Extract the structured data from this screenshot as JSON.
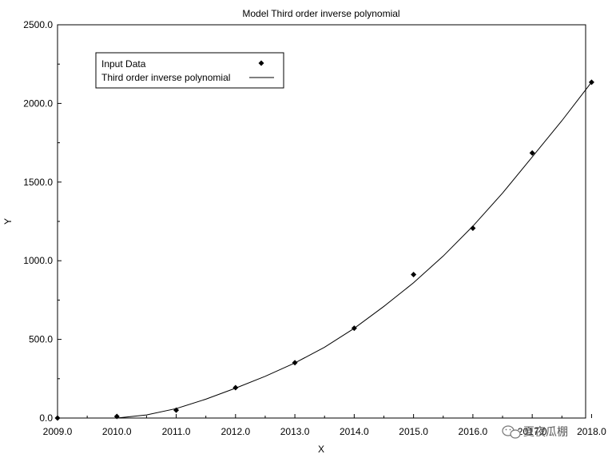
{
  "chart_data": {
    "type": "scatter",
    "title": "Model Third order inverse polynomial",
    "xlabel": "X",
    "ylabel": "Y",
    "xlim": [
      2009.0,
      2017.9
    ],
    "ylim": [
      0.0,
      2500.0
    ],
    "x_ticks": [
      2009.0,
      2010.0,
      2011.0,
      2012.0,
      2013.0,
      2014.0,
      2015.0,
      2016.0,
      2017.0,
      2018.0
    ],
    "x_tick_labels": [
      "2009.0",
      "2010.0",
      "2011.0",
      "2012.0",
      "2013.0",
      "2014.0",
      "2015.0",
      "2016.0",
      "2017.0",
      "2018.0"
    ],
    "y_ticks": [
      0.0,
      500.0,
      1000.0,
      1500.0,
      2000.0,
      2500.0
    ],
    "y_tick_labels": [
      "0.0",
      "500.0",
      "1000.0",
      "1500.0",
      "2000.0",
      "2500.0"
    ],
    "legend_position": "top-left",
    "grid": false,
    "series": [
      {
        "name": "Input Data",
        "kind": "markers",
        "x": [
          2009,
          2010,
          2011,
          2012,
          2013,
          2014,
          2015,
          2016,
          2017,
          2018
        ],
        "y": [
          0,
          10,
          50,
          193,
          352,
          571,
          912,
          1207,
          1685,
          2135
        ]
      },
      {
        "name": "Third order inverse polynomial",
        "kind": "line",
        "x": [
          2010.0,
          2010.5,
          2011.0,
          2011.5,
          2012.0,
          2012.5,
          2013.0,
          2013.5,
          2014.0,
          2014.5,
          2015.0,
          2015.5,
          2016.0,
          2016.5,
          2017.0,
          2017.5,
          2018.0
        ],
        "y": [
          0,
          20,
          60,
          120,
          190,
          265,
          350,
          450,
          570,
          710,
          860,
          1030,
          1220,
          1430,
          1660,
          1890,
          2135
        ]
      }
    ],
    "watermark": {
      "text": "夏夜瓜棚",
      "icon": "wechat-icon"
    }
  }
}
